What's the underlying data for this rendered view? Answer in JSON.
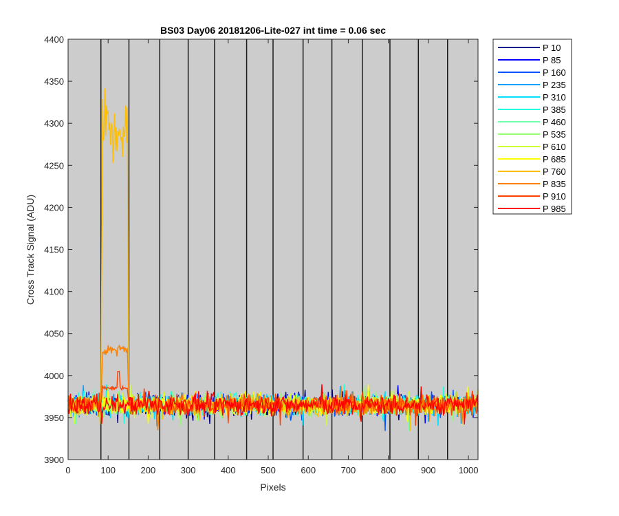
{
  "chart_data": {
    "type": "line",
    "title": "BS03 Day06 20181206-Lite-027 int time = 0.06 sec",
    "xlabel": "Pixels",
    "ylabel": "Cross Track Signal (ADU)",
    "xlim": [
      0,
      1024
    ],
    "ylim": [
      3900,
      4400
    ],
    "xticks": [
      0,
      100,
      200,
      300,
      400,
      500,
      600,
      700,
      800,
      900,
      1000
    ],
    "yticks": [
      3900,
      3950,
      4000,
      4050,
      4100,
      4150,
      4200,
      4250,
      4300,
      4350,
      4400
    ],
    "plot_background": "#cccccc",
    "grid": false,
    "legend_position": "outside-top-right",
    "vertical_lines_x": [
      82,
      152,
      229,
      300,
      366,
      446,
      512,
      587,
      659,
      735,
      804,
      875,
      948
    ],
    "baseline": {
      "mean": 3965,
      "noise_range": [
        3930,
        4000
      ]
    },
    "series": [
      {
        "name": "P 10",
        "color": "#00008f",
        "plateau": null
      },
      {
        "name": "P 85",
        "color": "#0000ff",
        "plateau": null
      },
      {
        "name": "P 160",
        "color": "#0050ff",
        "plateau": null
      },
      {
        "name": "P 235",
        "color": "#009fff",
        "plateau": null
      },
      {
        "name": "P 310",
        "color": "#00dfff",
        "plateau": null
      },
      {
        "name": "P 385",
        "color": "#20ffdf",
        "plateau": null
      },
      {
        "name": "P 460",
        "color": "#70ffaf",
        "plateau": null
      },
      {
        "name": "P 535",
        "color": "#8fff70",
        "plateau": null
      },
      {
        "name": "P 610",
        "color": "#cfff30",
        "plateau": null
      },
      {
        "name": "P 685",
        "color": "#ffff00",
        "plateau": null
      },
      {
        "name": "P 760",
        "color": "#ffbf00",
        "plateau": {
          "x_start": 82,
          "x_end": 152,
          "level": 4300,
          "peak": 4365
        }
      },
      {
        "name": "P 835",
        "color": "#ff8000",
        "plateau": {
          "x_start": 82,
          "x_end": 152,
          "level": 4030,
          "peak": 4068
        }
      },
      {
        "name": "P 910",
        "color": "#ff4000",
        "plateau": {
          "x_start": 82,
          "x_end": 152,
          "level": 3985,
          "peak": 4005
        }
      },
      {
        "name": "P 985",
        "color": "#ff0000",
        "plateau": null
      }
    ]
  }
}
